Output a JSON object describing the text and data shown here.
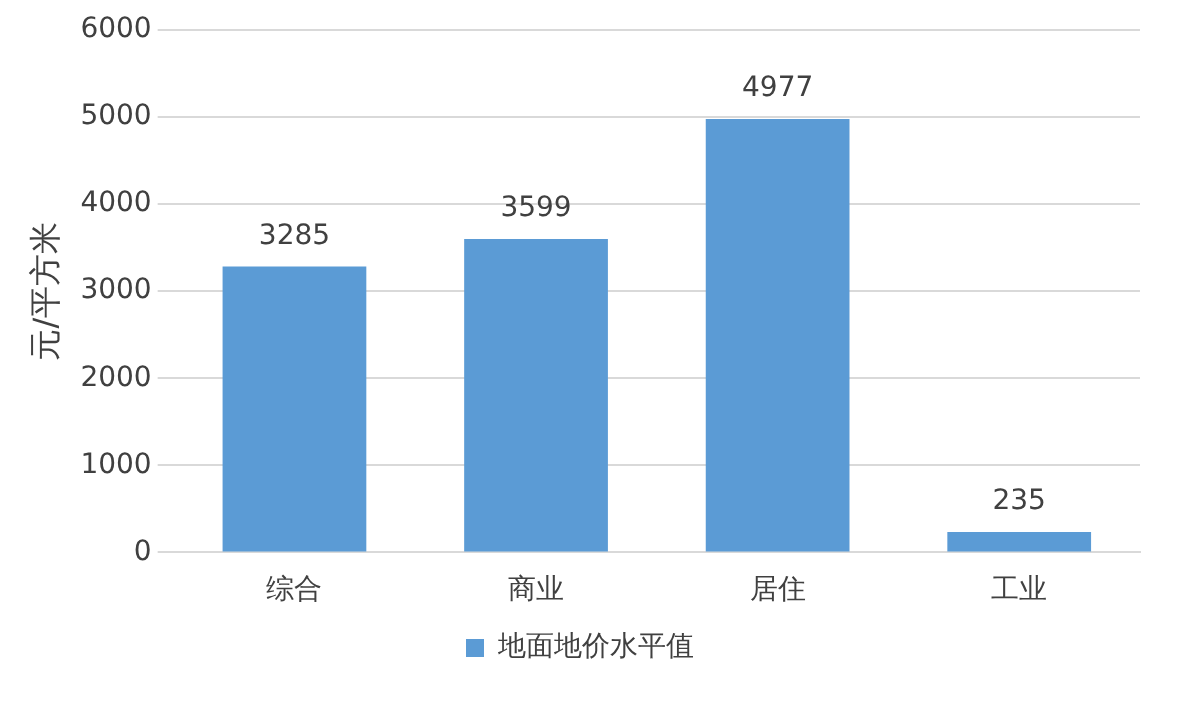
{
  "chart_data": {
    "type": "bar",
    "ylabel": "元/平方米",
    "categories": [
      "综合",
      "商业",
      "居住",
      "工业"
    ],
    "series": [
      {
        "name": "地面地价水平值",
        "color": "#5b9bd5",
        "values": [
          3285,
          3599,
          4977,
          235
        ]
      }
    ],
    "ylim": [
      0,
      6000
    ],
    "yticks": [
      0,
      1000,
      2000,
      3000,
      4000,
      5000,
      6000
    ],
    "grid": "y",
    "legend": "bottom",
    "data_labels": true
  }
}
